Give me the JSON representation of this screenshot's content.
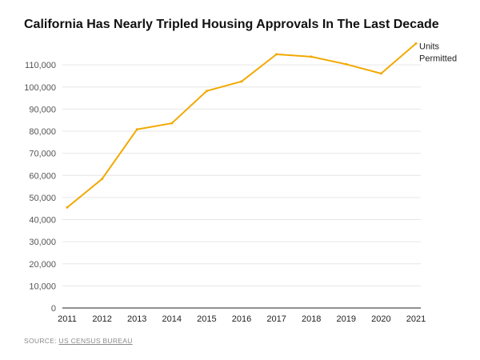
{
  "chart_data": {
    "type": "line",
    "title": "California Has Nearly Tripled Housing Approvals In The Last Decade",
    "xlabel": "",
    "ylabel": "",
    "x": [
      "2011",
      "2012",
      "2013",
      "2014",
      "2015",
      "2016",
      "2017",
      "2018",
      "2019",
      "2020",
      "2021"
    ],
    "series": [
      {
        "name": "Units Permitted",
        "legend_lines": [
          "Units",
          "Permitted"
        ],
        "values": [
          45500,
          58400,
          80800,
          83600,
          98200,
          102500,
          114800,
          113700,
          110300,
          106100,
          119700
        ],
        "color": "#f2a900"
      }
    ],
    "ylim": [
      0,
      115000
    ],
    "yticks": [
      0,
      10000,
      20000,
      30000,
      40000,
      50000,
      60000,
      70000,
      80000,
      90000,
      100000,
      110000
    ],
    "ytick_labels": [
      "0",
      "10,000",
      "20,000",
      "30,000",
      "40,000",
      "50,000",
      "60,000",
      "70,000",
      "80,000",
      "90,000",
      "100,000",
      "110,000"
    ],
    "grid": true,
    "legend_position": "right-end-of-line"
  },
  "source": {
    "prefix": "SOURCE: ",
    "link_text": "US CENSUS BUREAU"
  }
}
